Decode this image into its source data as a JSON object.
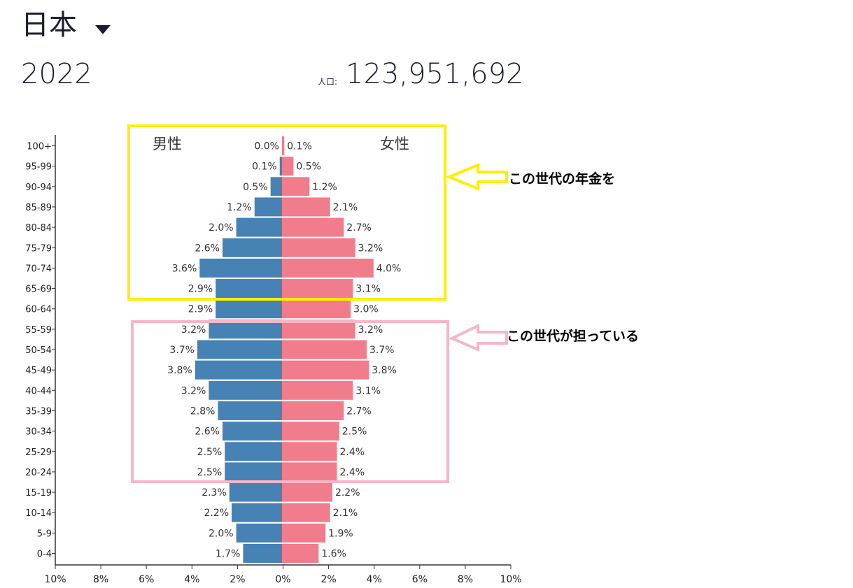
{
  "header": {
    "country": "日本",
    "year": "2022",
    "population_label": "人口:",
    "population_value": "123,951,692"
  },
  "colors": {
    "male": "#4682b4",
    "female": "#f07c8c",
    "highlight_pension": "#ffee00",
    "highlight_workers": "#f5b6c8",
    "arrow_yellow": "#ffee00",
    "arrow_pink": "#f5b6c8"
  },
  "annotations": {
    "pension_note": "この世代の年金を",
    "workers_note": "この世代が担っている"
  },
  "chart_data": {
    "type": "bar",
    "orientation": "horizontal-diverging",
    "legend": {
      "male": "男性",
      "female": "女性"
    },
    "categories": [
      "100+",
      "95-99",
      "90-94",
      "85-89",
      "80-84",
      "75-79",
      "70-74",
      "65-69",
      "60-64",
      "55-59",
      "50-54",
      "45-49",
      "40-44",
      "35-39",
      "30-34",
      "25-29",
      "20-24",
      "15-19",
      "10-14",
      "5-9",
      "0-4"
    ],
    "series": [
      {
        "name": "男性",
        "values": [
          0.0,
          0.1,
          0.5,
          1.2,
          2.0,
          2.6,
          3.6,
          2.9,
          2.9,
          3.2,
          3.7,
          3.8,
          3.2,
          2.8,
          2.6,
          2.5,
          2.5,
          2.3,
          2.2,
          2.0,
          1.7
        ]
      },
      {
        "name": "女性",
        "values": [
          0.1,
          0.5,
          1.2,
          2.1,
          2.7,
          3.2,
          4.0,
          3.1,
          3.0,
          3.2,
          3.7,
          3.8,
          3.1,
          2.7,
          2.5,
          2.4,
          2.4,
          2.2,
          2.1,
          1.9,
          1.6
        ]
      }
    ],
    "xlim": [
      -10,
      10
    ],
    "xticks": [
      "10%",
      "8%",
      "6%",
      "4%",
      "2%",
      "0%",
      "2%",
      "4%",
      "6%",
      "8%",
      "10%"
    ],
    "unit": "%"
  }
}
